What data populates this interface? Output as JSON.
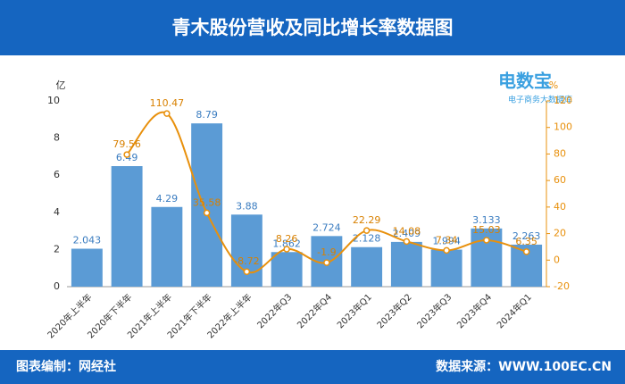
{
  "chart_data": {
    "type": "bar_line",
    "title": "青木股份营收及同比增长率数据图",
    "y_unit": "亿",
    "y2_unit": "%",
    "categories": [
      "2020年上半年",
      "2020年下半年",
      "2021年上半年",
      "2021年下半年",
      "2022年上半年",
      "2022年Q3",
      "2022年Q4",
      "2023年Q1",
      "2023年Q2",
      "2023年Q3",
      "2023年Q4",
      "2024年Q1"
    ],
    "series": [
      {
        "name": "营收",
        "type": "bar",
        "color": "#5b9bd5",
        "values": [
          2.043,
          6.49,
          4.29,
          8.79,
          3.88,
          1.862,
          2.724,
          2.128,
          2.409,
          1.994,
          3.133,
          2.263
        ]
      },
      {
        "name": "同比增长率",
        "type": "line",
        "axis": "y2",
        "color": "#e8900c",
        "values": [
          null,
          79.56,
          110.47,
          35.58,
          -8.72,
          8.26,
          -1.9,
          22.29,
          14.08,
          7.34,
          15.03,
          6.35
        ]
      }
    ],
    "ylim": [
      0,
      10
    ],
    "yticks": [
      0,
      2,
      4,
      6,
      8,
      10
    ],
    "y2lim": [
      -20,
      120
    ],
    "y2ticks": [
      -20,
      0,
      20,
      40,
      60,
      80,
      100,
      120
    ],
    "logo": "电数宝",
    "logo_sub": "电子商务大数据库",
    "footer_left": "图表编制：网经社",
    "footer_right": "数据来源：WWW.100EC.CN"
  }
}
